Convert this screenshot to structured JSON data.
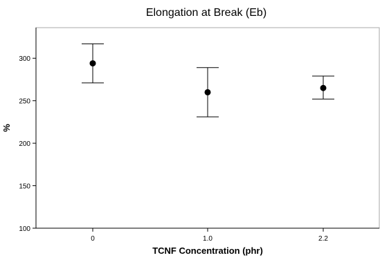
{
  "chart_data": {
    "type": "scatter",
    "title": "Elongation at Break (Eb)",
    "xlabel": "TCNF Concentration (phr)",
    "ylabel": "%",
    "categories": [
      "0",
      "1.0",
      "2.2"
    ],
    "y_ticks": [
      100,
      150,
      200,
      250,
      300
    ],
    "ylim": [
      100,
      336
    ],
    "grid": false,
    "series": [
      {
        "values": [
          294,
          260,
          265
        ],
        "error_upper": [
          317,
          289,
          279
        ],
        "error_lower": [
          271,
          231,
          252
        ]
      }
    ]
  }
}
